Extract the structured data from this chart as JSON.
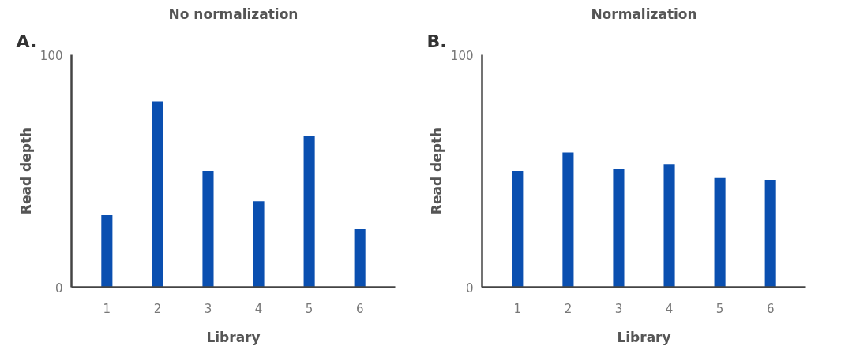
{
  "chart_data": [
    {
      "type": "bar",
      "title": "No normalization",
      "xlabel": "Library",
      "ylabel": "Read depth",
      "annotations": [
        "A."
      ],
      "categories": [
        "1",
        "2",
        "3",
        "4",
        "5",
        "6"
      ],
      "values": [
        31,
        80,
        50,
        37,
        65,
        25
      ],
      "color": "#0a4fb0",
      "ylim": [
        0,
        100
      ],
      "yticks": [
        0,
        100
      ],
      "grid": false
    },
    {
      "type": "bar",
      "title": "Normalization",
      "xlabel": "Library",
      "ylabel": "Read depth",
      "annotations": [
        "B."
      ],
      "categories": [
        "1",
        "2",
        "3",
        "4",
        "5",
        "6"
      ],
      "values": [
        50,
        58,
        51,
        53,
        47,
        46
      ],
      "color": "#0a4fb0",
      "ylim": [
        0,
        100
      ],
      "yticks": [
        0,
        100
      ],
      "grid": false
    }
  ]
}
